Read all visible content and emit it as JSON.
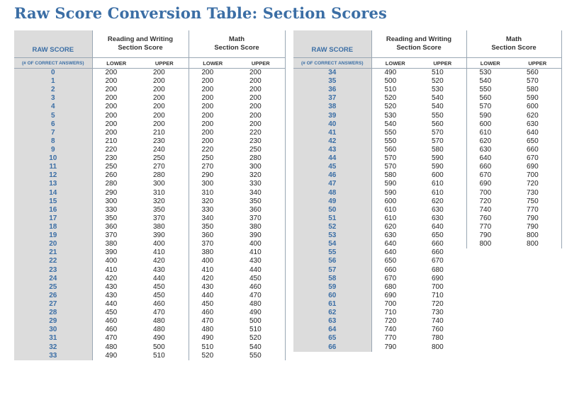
{
  "title": "Raw Score Conversion Table: Section Scores",
  "headers": {
    "raw_score": "RAW SCORE",
    "raw_sub": "(# OF CORRECT ANSWERS)",
    "rw_line1": "Reading and Writing",
    "rw_line2": "Section Score",
    "math_line1": "Math",
    "math_line2": "Section Score",
    "lower": "LOWER",
    "upper": "UPPER"
  },
  "left_rows": [
    [
      "0",
      "200",
      "200",
      "200",
      "200"
    ],
    [
      "1",
      "200",
      "200",
      "200",
      "200"
    ],
    [
      "2",
      "200",
      "200",
      "200",
      "200"
    ],
    [
      "3",
      "200",
      "200",
      "200",
      "200"
    ],
    [
      "4",
      "200",
      "200",
      "200",
      "200"
    ],
    [
      "5",
      "200",
      "200",
      "200",
      "200"
    ],
    [
      "6",
      "200",
      "200",
      "200",
      "200"
    ],
    [
      "7",
      "200",
      "210",
      "200",
      "220"
    ],
    [
      "8",
      "210",
      "230",
      "200",
      "230"
    ],
    [
      "9",
      "220",
      "240",
      "220",
      "250"
    ],
    [
      "10",
      "230",
      "250",
      "250",
      "280"
    ],
    [
      "11",
      "250",
      "270",
      "270",
      "300"
    ],
    [
      "12",
      "260",
      "280",
      "290",
      "320"
    ],
    [
      "13",
      "280",
      "300",
      "300",
      "330"
    ],
    [
      "14",
      "290",
      "310",
      "310",
      "340"
    ],
    [
      "15",
      "300",
      "320",
      "320",
      "350"
    ],
    [
      "16",
      "330",
      "350",
      "330",
      "360"
    ],
    [
      "17",
      "350",
      "370",
      "340",
      "370"
    ],
    [
      "18",
      "360",
      "380",
      "350",
      "380"
    ],
    [
      "19",
      "370",
      "390",
      "360",
      "390"
    ],
    [
      "20",
      "380",
      "400",
      "370",
      "400"
    ],
    [
      "21",
      "390",
      "410",
      "380",
      "410"
    ],
    [
      "22",
      "400",
      "420",
      "400",
      "430"
    ],
    [
      "23",
      "410",
      "430",
      "410",
      "440"
    ],
    [
      "24",
      "420",
      "440",
      "420",
      "450"
    ],
    [
      "25",
      "430",
      "450",
      "430",
      "460"
    ],
    [
      "26",
      "430",
      "450",
      "440",
      "470"
    ],
    [
      "27",
      "440",
      "460",
      "450",
      "480"
    ],
    [
      "28",
      "450",
      "470",
      "460",
      "490"
    ],
    [
      "29",
      "460",
      "480",
      "470",
      "500"
    ],
    [
      "30",
      "460",
      "480",
      "480",
      "510"
    ],
    [
      "31",
      "470",
      "490",
      "490",
      "520"
    ],
    [
      "32",
      "480",
      "500",
      "510",
      "540"
    ],
    [
      "33",
      "490",
      "510",
      "520",
      "550"
    ]
  ],
  "right_rows": [
    [
      "34",
      "490",
      "510",
      "530",
      "560"
    ],
    [
      "35",
      "500",
      "520",
      "540",
      "570"
    ],
    [
      "36",
      "510",
      "530",
      "550",
      "580"
    ],
    [
      "37",
      "520",
      "540",
      "560",
      "590"
    ],
    [
      "38",
      "520",
      "540",
      "570",
      "600"
    ],
    [
      "39",
      "530",
      "550",
      "590",
      "620"
    ],
    [
      "40",
      "540",
      "560",
      "600",
      "630"
    ],
    [
      "41",
      "550",
      "570",
      "610",
      "640"
    ],
    [
      "42",
      "550",
      "570",
      "620",
      "650"
    ],
    [
      "43",
      "560",
      "580",
      "630",
      "660"
    ],
    [
      "44",
      "570",
      "590",
      "640",
      "670"
    ],
    [
      "45",
      "570",
      "590",
      "660",
      "690"
    ],
    [
      "46",
      "580",
      "600",
      "670",
      "700"
    ],
    [
      "47",
      "590",
      "610",
      "690",
      "720"
    ],
    [
      "48",
      "590",
      "610",
      "700",
      "730"
    ],
    [
      "49",
      "600",
      "620",
      "720",
      "750"
    ],
    [
      "50",
      "610",
      "630",
      "740",
      "770"
    ],
    [
      "51",
      "610",
      "630",
      "760",
      "790"
    ],
    [
      "52",
      "620",
      "640",
      "770",
      "790"
    ],
    [
      "53",
      "630",
      "650",
      "790",
      "800"
    ],
    [
      "54",
      "640",
      "660",
      "800",
      "800"
    ],
    [
      "55",
      "640",
      "660",
      "",
      ""
    ],
    [
      "56",
      "650",
      "670",
      "",
      ""
    ],
    [
      "57",
      "660",
      "680",
      "",
      ""
    ],
    [
      "58",
      "670",
      "690",
      "",
      ""
    ],
    [
      "59",
      "680",
      "700",
      "",
      ""
    ],
    [
      "60",
      "690",
      "710",
      "",
      ""
    ],
    [
      "61",
      "700",
      "720",
      "",
      ""
    ],
    [
      "62",
      "710",
      "730",
      "",
      ""
    ],
    [
      "63",
      "720",
      "740",
      "",
      ""
    ],
    [
      "64",
      "740",
      "760",
      "",
      ""
    ],
    [
      "65",
      "770",
      "780",
      "",
      ""
    ],
    [
      "66",
      "790",
      "800",
      "",
      ""
    ]
  ],
  "colors": {
    "accent_blue": "#3b6ea5",
    "raw_column_bg": "#dcdcdc",
    "grid_line": "#9aa7b4"
  }
}
